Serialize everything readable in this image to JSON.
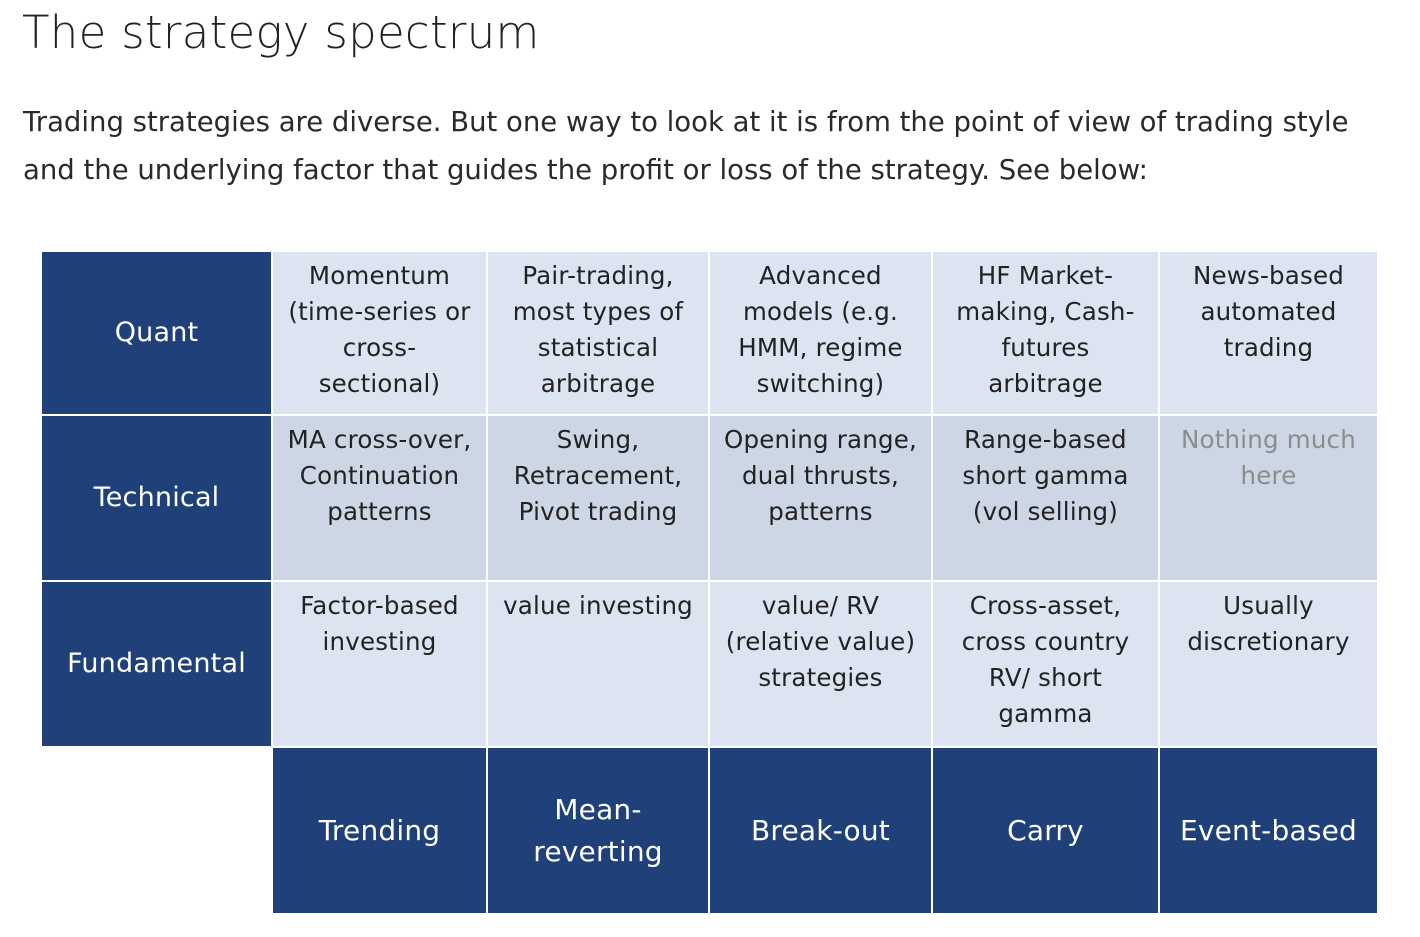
{
  "article": {
    "title": "The strategy spectrum",
    "intro": "Trading strategies are diverse. But one way to look at it is from the point of view of trading style and the underlying factor that guides the profit or loss of the strategy. See below:"
  },
  "matrix": {
    "row_labels": [
      "Quant",
      "Technical",
      "Fundamental"
    ],
    "column_labels": [
      "Trending",
      "Mean-\nreverting",
      "Break-out",
      "Carry",
      "Event-based"
    ],
    "cells": [
      [
        "Momentum\n(time-series or\ncross-\nsectional)",
        "Pair-trading,\nmost types of\nstatistical\narbitrage",
        "Advanced\nmodels (e.g.\nHMM, regime\nswitching)",
        "HF Market-\nmaking, Cash-\nfutures\narbitrage",
        "News-based\nautomated\ntrading"
      ],
      [
        "MA cross-over,\nContinuation\npatterns",
        "Swing,\nRetracement,\nPivot trading",
        "Opening range,\ndual thrusts,\npatterns",
        "Range-based\nshort gamma\n(vol selling)",
        "Nothing much\nhere"
      ],
      [
        "Factor-based\ninvesting",
        "value investing",
        "value/ RV\n(relative value)\nstrategies",
        "Cross-asset,\ncross country\nRV/ short\ngamma",
        "Usually\ndiscretionary"
      ]
    ],
    "colors": {
      "header_fill": "#1f4078",
      "light_cell_fill": "#dbe4f0",
      "technical_row_fill": "#cdd6e4",
      "muted_text": "#8c8c8c"
    }
  }
}
